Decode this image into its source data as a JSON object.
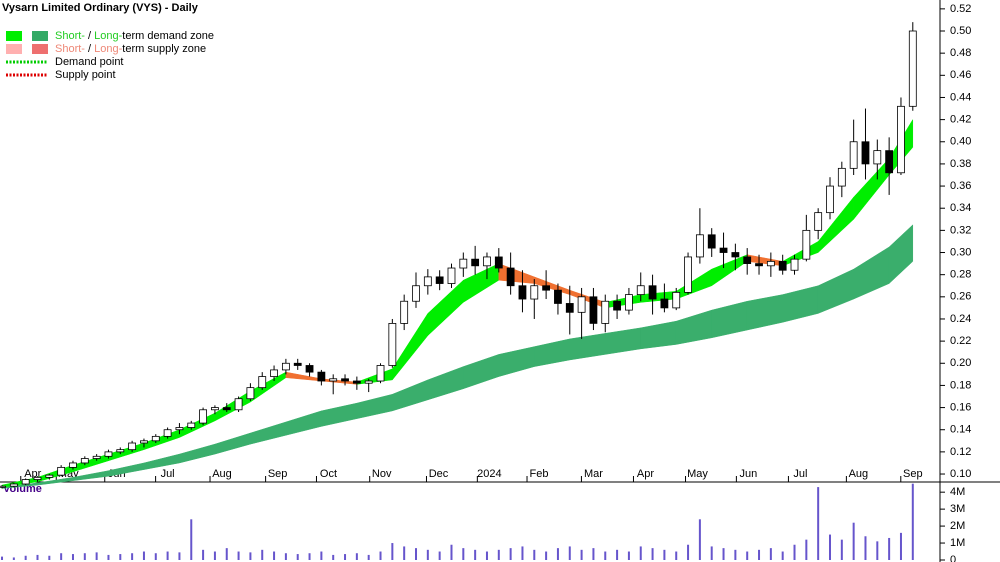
{
  "chart_data": {
    "type": "candlestick",
    "title": "Vysarn Limited Ordinary (VYS) - Daily",
    "legend": [
      {
        "short": "Short-",
        "sep": "/",
        "long": "Long-",
        "rest": "term demand zone",
        "colors": [
          "#00ee00",
          "#33aa66"
        ],
        "text_color": "#22cc22"
      },
      {
        "short": "Short-",
        "sep": "/",
        "long": "Long-",
        "rest": "term supply zone",
        "colors": [
          "#ffb0b0",
          "#ee6f6f"
        ],
        "text_color": "#ee8877"
      },
      {
        "rest": "Demand point",
        "colors": [
          "#00cc00"
        ]
      },
      {
        "rest": "Supply point",
        "colors": [
          "#dd0000"
        ]
      }
    ],
    "x": [
      0,
      1,
      2,
      3,
      4,
      5,
      6,
      7,
      8,
      9,
      10,
      11,
      12,
      13,
      14,
      15,
      16,
      17,
      18,
      19,
      20,
      21,
      22,
      23,
      24,
      25,
      26,
      27,
      28,
      29,
      30,
      31,
      32,
      33,
      34,
      35,
      36,
      37,
      38,
      39,
      40,
      41,
      42,
      43,
      44,
      45,
      46,
      47,
      48,
      49,
      50,
      51,
      52,
      53,
      54,
      55,
      56,
      57,
      58,
      59,
      60,
      61,
      62,
      63,
      64,
      65,
      66,
      67,
      68,
      69,
      70,
      71,
      72,
      73,
      74,
      75,
      76,
      77
    ],
    "open": [
      0.088,
      0.089,
      0.091,
      0.095,
      0.097,
      0.099,
      0.106,
      0.11,
      0.114,
      0.116,
      0.12,
      0.122,
      0.128,
      0.13,
      0.134,
      0.14,
      0.142,
      0.146,
      0.158,
      0.16,
      0.158,
      0.168,
      0.178,
      0.188,
      0.194,
      0.2,
      0.198,
      0.192,
      0.184,
      0.186,
      0.184,
      0.182,
      0.184,
      0.198,
      0.236,
      0.256,
      0.27,
      0.278,
      0.272,
      0.286,
      0.294,
      0.288,
      0.296,
      0.286,
      0.27,
      0.258,
      0.27,
      0.266,
      0.254,
      0.246,
      0.26,
      0.236,
      0.256,
      0.248,
      0.262,
      0.27,
      0.258,
      0.25,
      0.264,
      0.296,
      0.316,
      0.304,
      0.3,
      0.296,
      0.29,
      0.288,
      0.292,
      0.284,
      0.294,
      0.32,
      0.336,
      0.36,
      0.376,
      0.4,
      0.38,
      0.392,
      0.372,
      0.432
    ],
    "high": [
      0.09,
      0.092,
      0.096,
      0.098,
      0.1,
      0.108,
      0.112,
      0.116,
      0.118,
      0.122,
      0.124,
      0.13,
      0.132,
      0.136,
      0.142,
      0.146,
      0.148,
      0.16,
      0.162,
      0.164,
      0.17,
      0.182,
      0.192,
      0.198,
      0.204,
      0.204,
      0.2,
      0.194,
      0.19,
      0.19,
      0.188,
      0.186,
      0.2,
      0.24,
      0.262,
      0.282,
      0.285,
      0.284,
      0.29,
      0.3,
      0.306,
      0.3,
      0.304,
      0.3,
      0.284,
      0.276,
      0.284,
      0.272,
      0.27,
      0.268,
      0.268,
      0.262,
      0.262,
      0.268,
      0.282,
      0.28,
      0.272,
      0.268,
      0.3,
      0.34,
      0.322,
      0.318,
      0.308,
      0.304,
      0.298,
      0.3,
      0.298,
      0.298,
      0.334,
      0.34,
      0.368,
      0.382,
      0.42,
      0.43,
      0.402,
      0.404,
      0.44,
      0.508
    ],
    "low": [
      0.087,
      0.088,
      0.09,
      0.093,
      0.095,
      0.098,
      0.104,
      0.108,
      0.112,
      0.114,
      0.118,
      0.12,
      0.124,
      0.128,
      0.132,
      0.136,
      0.14,
      0.144,
      0.154,
      0.156,
      0.156,
      0.166,
      0.176,
      0.184,
      0.19,
      0.194,
      0.188,
      0.18,
      0.172,
      0.18,
      0.176,
      0.174,
      0.182,
      0.196,
      0.23,
      0.25,
      0.262,
      0.266,
      0.268,
      0.278,
      0.28,
      0.276,
      0.282,
      0.262,
      0.246,
      0.24,
      0.258,
      0.244,
      0.226,
      0.222,
      0.23,
      0.228,
      0.24,
      0.244,
      0.256,
      0.244,
      0.246,
      0.248,
      0.262,
      0.29,
      0.296,
      0.286,
      0.284,
      0.28,
      0.28,
      0.278,
      0.28,
      0.28,
      0.292,
      0.312,
      0.33,
      0.35,
      0.37,
      0.366,
      0.366,
      0.352,
      0.37,
      0.428
    ],
    "close": [
      0.089,
      0.091,
      0.095,
      0.097,
      0.099,
      0.106,
      0.11,
      0.114,
      0.116,
      0.12,
      0.122,
      0.128,
      0.13,
      0.134,
      0.14,
      0.142,
      0.146,
      0.158,
      0.16,
      0.158,
      0.168,
      0.178,
      0.188,
      0.194,
      0.2,
      0.198,
      0.192,
      0.184,
      0.186,
      0.184,
      0.182,
      0.184,
      0.198,
      0.236,
      0.256,
      0.27,
      0.278,
      0.272,
      0.286,
      0.294,
      0.288,
      0.296,
      0.286,
      0.27,
      0.258,
      0.27,
      0.266,
      0.254,
      0.246,
      0.26,
      0.236,
      0.256,
      0.248,
      0.262,
      0.27,
      0.258,
      0.25,
      0.264,
      0.296,
      0.316,
      0.304,
      0.3,
      0.296,
      0.29,
      0.288,
      0.292,
      0.284,
      0.294,
      0.32,
      0.336,
      0.36,
      0.376,
      0.4,
      0.38,
      0.392,
      0.372,
      0.432,
      0.5
    ],
    "zone_x": [
      0,
      3,
      6,
      9,
      12,
      15,
      18,
      21,
      24,
      27,
      30,
      33,
      36,
      39,
      42,
      45,
      48,
      51,
      54,
      57,
      60,
      63,
      66,
      69,
      72,
      75,
      77
    ],
    "short_zone": {
      "upper": [
        0.09,
        0.097,
        0.108,
        0.118,
        0.128,
        0.14,
        0.155,
        0.175,
        0.192,
        0.186,
        0.183,
        0.195,
        0.245,
        0.275,
        0.29,
        0.278,
        0.266,
        0.255,
        0.262,
        0.265,
        0.285,
        0.298,
        0.292,
        0.31,
        0.35,
        0.385,
        0.42
      ],
      "lower": [
        0.088,
        0.093,
        0.102,
        0.112,
        0.122,
        0.133,
        0.148,
        0.165,
        0.187,
        0.184,
        0.181,
        0.185,
        0.225,
        0.255,
        0.275,
        0.272,
        0.262,
        0.25,
        0.255,
        0.258,
        0.27,
        0.292,
        0.288,
        0.3,
        0.33,
        0.37,
        0.395
      ],
      "color": "#00ee00",
      "supply_color": "#f07030"
    },
    "long_zone": {
      "upper": [
        0.088,
        0.092,
        0.097,
        0.103,
        0.11,
        0.118,
        0.127,
        0.137,
        0.147,
        0.157,
        0.164,
        0.172,
        0.185,
        0.197,
        0.208,
        0.215,
        0.222,
        0.227,
        0.232,
        0.238,
        0.248,
        0.256,
        0.262,
        0.27,
        0.285,
        0.305,
        0.325
      ],
      "lower": [
        0.087,
        0.09,
        0.094,
        0.098,
        0.104,
        0.11,
        0.118,
        0.127,
        0.135,
        0.143,
        0.15,
        0.157,
        0.167,
        0.177,
        0.188,
        0.197,
        0.203,
        0.208,
        0.213,
        0.217,
        0.223,
        0.23,
        0.237,
        0.245,
        0.258,
        0.272,
        0.292
      ],
      "color": "#3aae6c"
    },
    "xlim": [
      -0.17,
      79.3
    ],
    "xticks": [
      {
        "value": 2.6,
        "label": "Apr"
      },
      {
        "value": 5.6,
        "label": "May"
      },
      {
        "value": 9.7,
        "label": "Jun"
      },
      {
        "value": 14.0,
        "label": "Jul"
      },
      {
        "value": 18.6,
        "label": "Aug"
      },
      {
        "value": 23.3,
        "label": "Sep"
      },
      {
        "value": 27.6,
        "label": "Oct"
      },
      {
        "value": 32.1,
        "label": "Nov"
      },
      {
        "value": 36.9,
        "label": "Dec"
      },
      {
        "value": 41.2,
        "label": "2024"
      },
      {
        "value": 45.4,
        "label": "Feb"
      },
      {
        "value": 50.0,
        "label": "Mar"
      },
      {
        "value": 54.4,
        "label": "Apr"
      },
      {
        "value": 58.8,
        "label": "May"
      },
      {
        "value": 63.1,
        "label": "Jun"
      },
      {
        "value": 67.5,
        "label": "Jul"
      },
      {
        "value": 72.4,
        "label": "Aug"
      },
      {
        "value": 77.0,
        "label": "Sep"
      }
    ],
    "ylim": [
      0.0928,
      0.528
    ],
    "yticks": [
      {
        "value": 0.1,
        "label": "0.10"
      },
      0.12,
      0.14,
      0.16,
      0.18,
      {
        "value": 0.2,
        "label": "0.20"
      },
      0.22,
      0.24,
      0.26,
      0.28,
      {
        "value": 0.3,
        "label": "0.30"
      },
      0.32,
      0.34,
      0.36,
      0.38,
      {
        "value": 0.4,
        "label": "0.40"
      },
      0.42,
      0.44,
      0.46,
      0.48,
      {
        "value": 0.5,
        "label": "0.50"
      },
      0.52
    ],
    "volume": {
      "title": "Volume",
      "color": "#6655cc",
      "values": [
        200000,
        150000,
        250000,
        300000,
        250000,
        400000,
        350000,
        400000,
        450000,
        300000,
        350000,
        400000,
        500000,
        400000,
        500000,
        450000,
        2400000,
        600000,
        500000,
        700000,
        500000,
        450000,
        600000,
        500000,
        400000,
        350000,
        400000,
        500000,
        300000,
        350000,
        400000,
        300000,
        500000,
        1000000,
        800000,
        700000,
        600000,
        500000,
        900000,
        700000,
        600000,
        500000,
        600000,
        700000,
        800000,
        600000,
        500000,
        700000,
        800000,
        600000,
        700000,
        500000,
        600000,
        500000,
        800000,
        700000,
        600000,
        500000,
        900000,
        2400000,
        800000,
        700000,
        600000,
        500000,
        600000,
        700000,
        500000,
        900000,
        1200000,
        4300000,
        1500000,
        1200000,
        2200000,
        1400000,
        1100000,
        1300000,
        1600000,
        4500000
      ],
      "ylim": [
        0,
        4600000
      ],
      "yticks": [
        0,
        {
          "value": 1000000,
          "label": "1M"
        },
        {
          "value": 2000000,
          "label": "2M"
        },
        {
          "value": 3000000,
          "label": "3M"
        },
        {
          "value": 4000000,
          "label": "4M"
        }
      ]
    }
  }
}
